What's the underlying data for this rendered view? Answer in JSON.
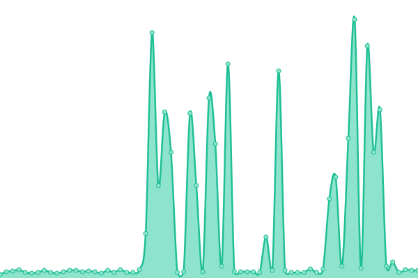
{
  "chart_data": {
    "type": "area",
    "values": [
      5,
      9,
      10,
      12,
      8,
      7,
      8,
      11,
      8,
      7,
      9,
      11,
      11,
      9,
      10,
      9,
      7,
      11,
      8,
      12,
      8,
      8,
      12,
      64,
      353,
      133,
      239,
      181,
      8,
      9,
      237,
      133,
      9,
      259,
      193,
      17,
      308,
      9,
      9,
      9,
      9,
      8,
      59,
      11,
      298,
      11,
      8,
      8,
      8,
      13,
      8,
      13,
      114,
      145,
      17,
      201,
      372,
      14,
      334,
      181,
      242,
      17,
      23,
      8,
      12,
      11,
      11
    ],
    "ylim": [
      0,
      400
    ],
    "color": "#1fbf96",
    "fill": "#8ee3cc"
  }
}
